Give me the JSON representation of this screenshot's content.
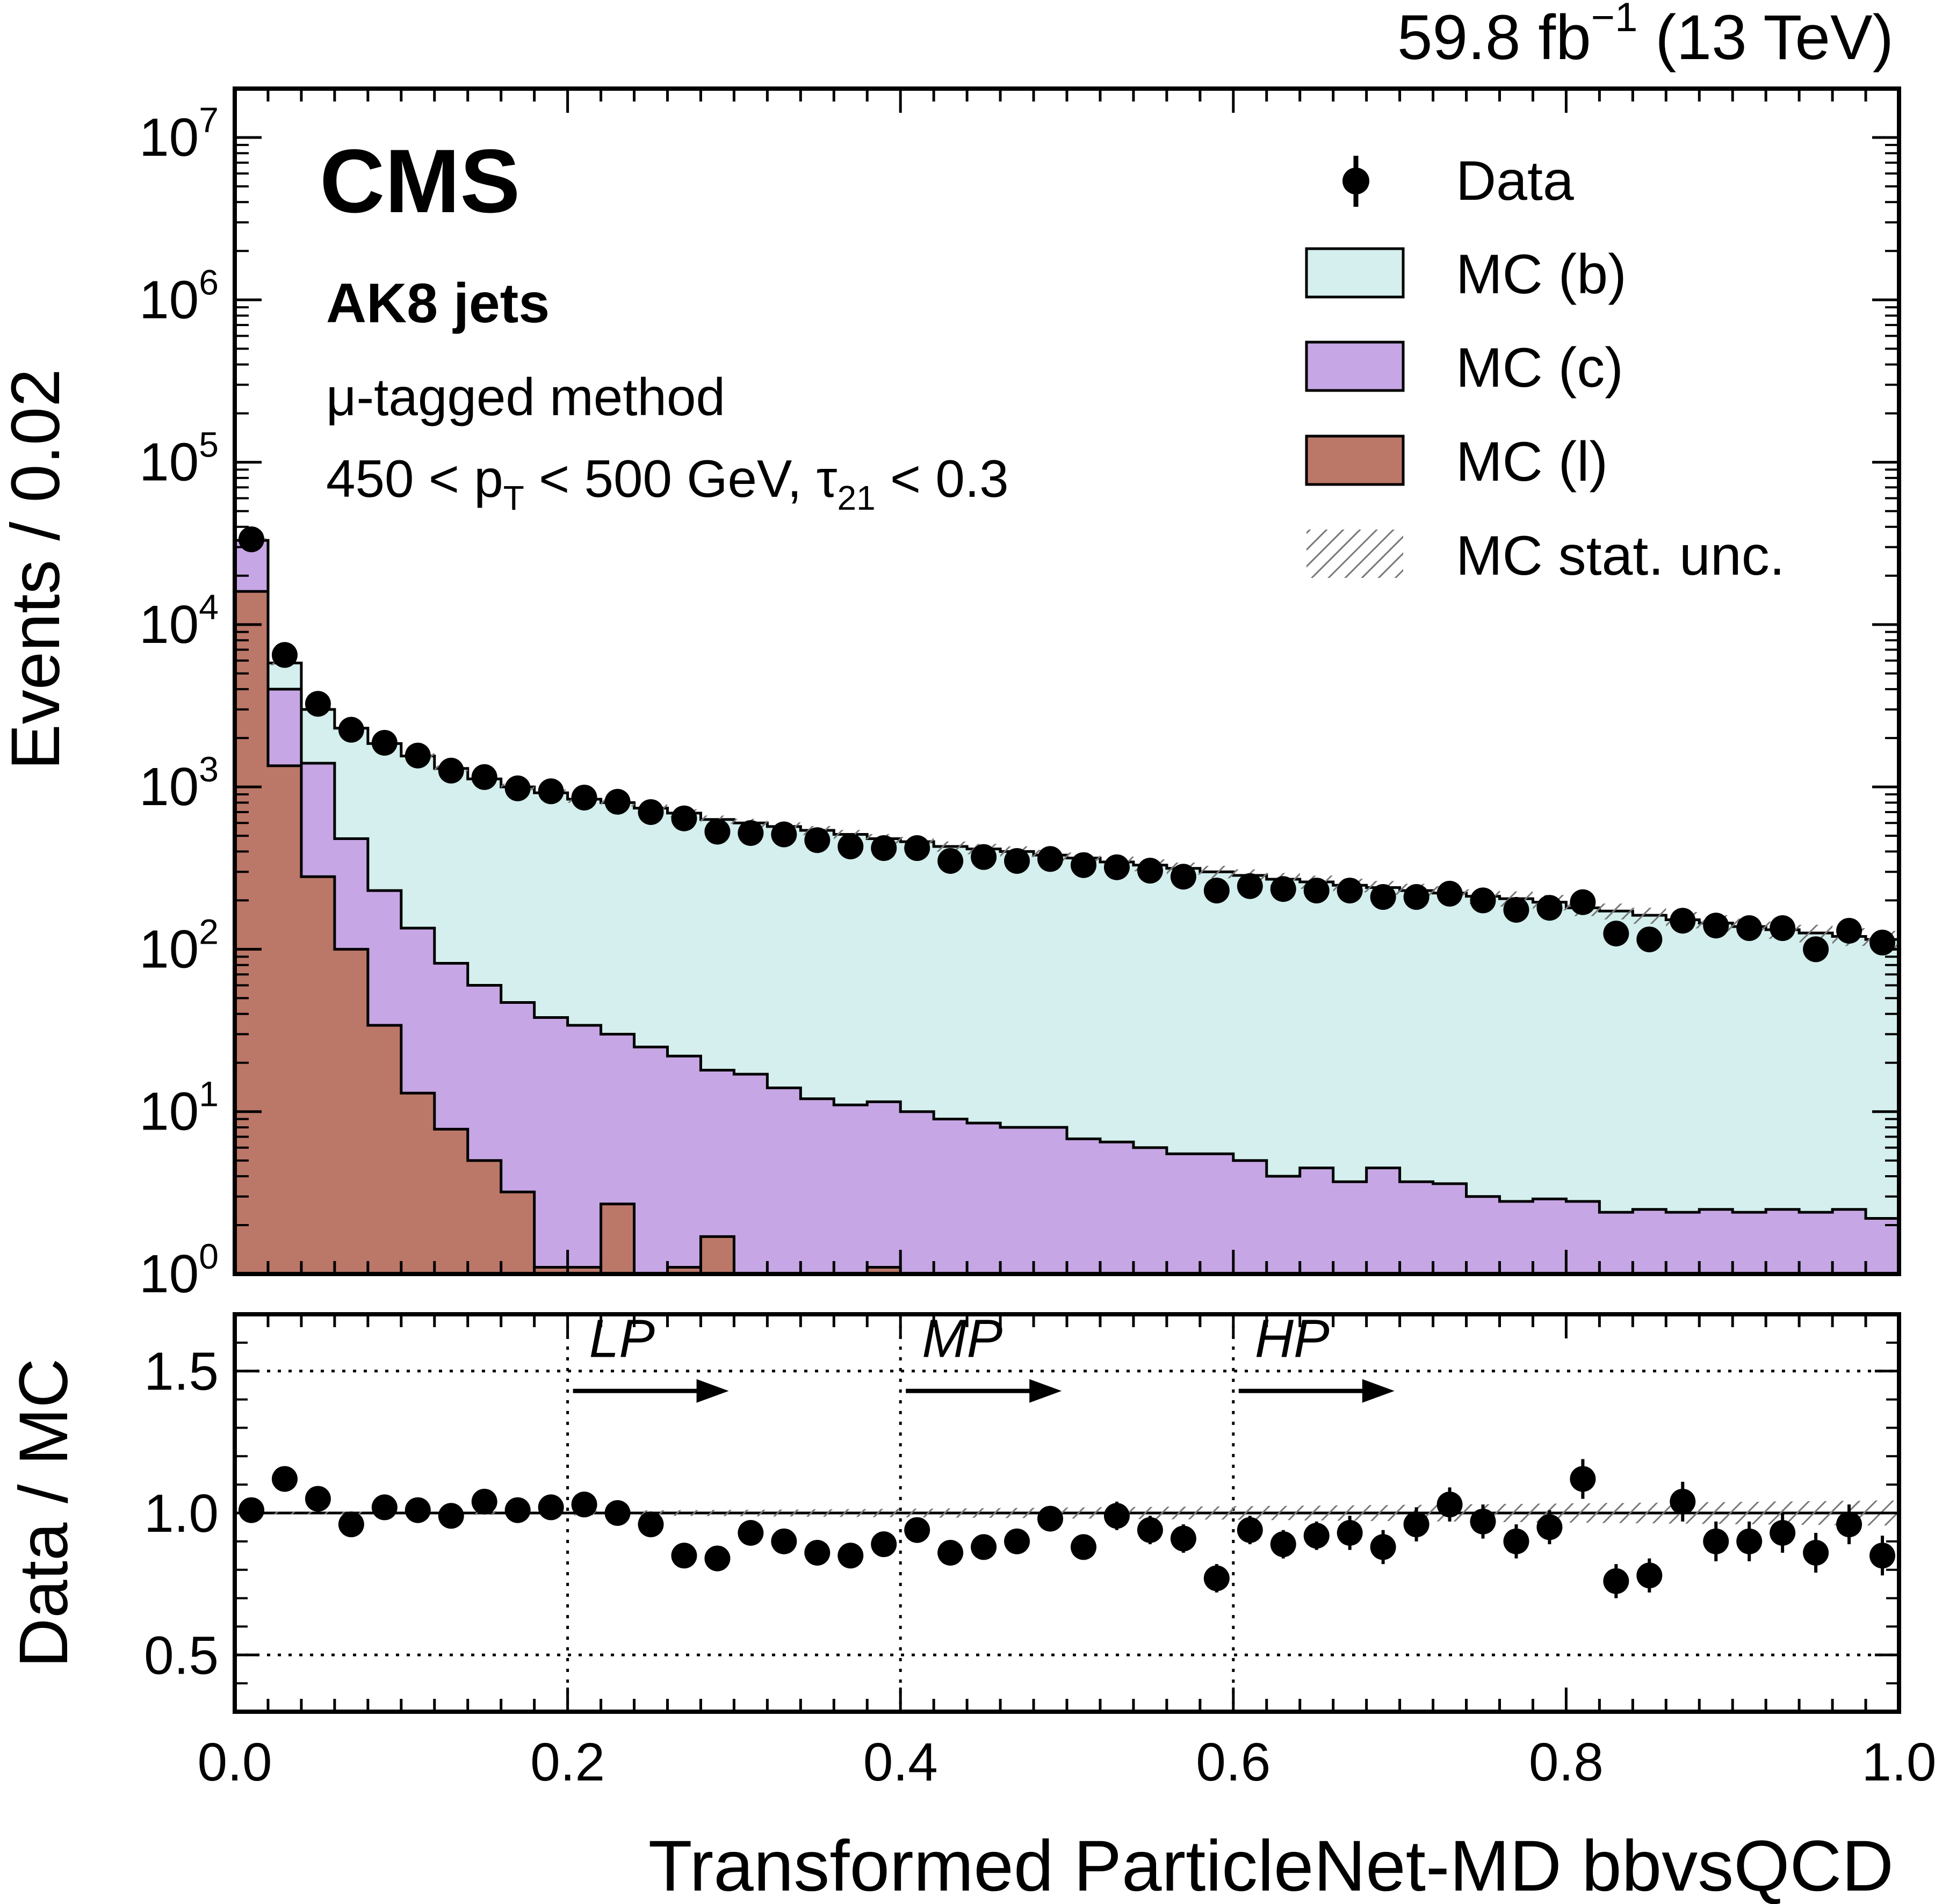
{
  "header": {
    "lumi_label": "59.8 fb",
    "lumi_exponent": "−1",
    "energy_label": "(13 TeV)"
  },
  "annotations": {
    "experiment": "CMS",
    "jet_collection": "AK8 jets",
    "method": "μ-tagged method",
    "cut_pt_prefix": "450 < p",
    "cut_pt_sub": "T",
    "cut_pt_suffix": " < 500 GeV, τ",
    "cut_tau_sub": "21",
    "cut_tau_suffix": " < 0.3"
  },
  "legend": {
    "data": "Data",
    "mc_b": "MC (b)",
    "mc_c": "MC (c)",
    "mc_l": "MC (l)",
    "mc_stat": "MC stat. unc."
  },
  "colors": {
    "mc_b": "#d4efed",
    "mc_c": "#c6a6e4",
    "mc_l": "#bb7768",
    "data": "#000000",
    "hatch": "#777777"
  },
  "chart_data": [
    {
      "type": "area",
      "panel": "main",
      "y_scale": "log",
      "ylabel": "Events / 0.02",
      "xlim": [
        0.0,
        1.0
      ],
      "ylim": [
        1,
        20000000
      ],
      "y_ticks": [
        {
          "value": 1,
          "exp": "0"
        },
        {
          "value": 10,
          "exp": "1"
        },
        {
          "value": 100,
          "exp": "2"
        },
        {
          "value": 1000,
          "exp": "3"
        },
        {
          "value": 10000,
          "exp": "4"
        },
        {
          "value": 100000,
          "exp": "5"
        },
        {
          "value": 1000000,
          "exp": "6"
        },
        {
          "value": 10000000,
          "exp": "7"
        }
      ],
      "y_tick_base": "10",
      "bin_edges": [
        0.0,
        0.02,
        0.04,
        0.06,
        0.08,
        0.1,
        0.12,
        0.14,
        0.16,
        0.18,
        0.2,
        0.22,
        0.24,
        0.26,
        0.28,
        0.3,
        0.32,
        0.34,
        0.36,
        0.38,
        0.4,
        0.42,
        0.44,
        0.46,
        0.48,
        0.5,
        0.52,
        0.54,
        0.56,
        0.58,
        0.6,
        0.62,
        0.64,
        0.66,
        0.68,
        0.7,
        0.72,
        0.74,
        0.76,
        0.78,
        0.8,
        0.82,
        0.84,
        0.86,
        0.88,
        0.9,
        0.92,
        0.94,
        0.96,
        0.98,
        1.0
      ],
      "series": [
        {
          "name": "MC (b)",
          "stacked_total": [
            33000,
            5800,
            3000,
            2300,
            1850,
            1550,
            1300,
            1120,
            1000,
            920,
            840,
            800,
            740,
            690,
            630,
            600,
            570,
            540,
            510,
            480,
            460,
            430,
            415,
            400,
            380,
            365,
            345,
            330,
            315,
            300,
            285,
            270,
            260,
            248,
            240,
            230,
            222,
            212,
            205,
            195,
            180,
            172,
            162,
            152,
            145,
            138,
            132,
            126,
            120,
            115
          ]
        },
        {
          "name": "MC (c)",
          "stacked_total": [
            33000,
            4000,
            1400,
            480,
            230,
            135,
            82,
            60,
            47,
            38,
            34,
            30,
            25,
            22,
            18,
            17,
            14,
            12,
            11,
            11.5,
            10,
            9,
            8.5,
            8,
            8,
            6.8,
            6.5,
            6,
            5.5,
            5.5,
            5,
            4,
            4.5,
            3.7,
            4.5,
            3.7,
            3.6,
            3,
            2.8,
            2.9,
            2.8,
            2.4,
            2.5,
            2.4,
            2.5,
            2.4,
            2.5,
            2.4,
            2.5,
            2.2
          ]
        },
        {
          "name": "MC (l)",
          "stacked_total": [
            16000,
            1350,
            280,
            100,
            34,
            13,
            7.8,
            5,
            3.2,
            1.1,
            1.1,
            2.7,
            1.0,
            1.1,
            1.7,
            1.0,
            1.0,
            1.0,
            1.0,
            1.1,
            1.0,
            1.0,
            1.0,
            1.0,
            1.0,
            1.0,
            1.0,
            1.0,
            1.0,
            1.0,
            1.0,
            1.0,
            1.0,
            1.0,
            1.0,
            1.0,
            1.0,
            1.0,
            1.0,
            1.0,
            1.0,
            1.0,
            1.0,
            1.0,
            1.0,
            1.0,
            1.0,
            1.0,
            1.0,
            1.0
          ]
        },
        {
          "name": "Data",
          "type": "scatter",
          "x": [
            0.01,
            0.03,
            0.05,
            0.07,
            0.09,
            0.11,
            0.13,
            0.15,
            0.17,
            0.19,
            0.21,
            0.23,
            0.25,
            0.27,
            0.29,
            0.31,
            0.33,
            0.35,
            0.37,
            0.39,
            0.41,
            0.43,
            0.45,
            0.47,
            0.49,
            0.51,
            0.53,
            0.55,
            0.57,
            0.59,
            0.61,
            0.63,
            0.65,
            0.67,
            0.69,
            0.71,
            0.73,
            0.75,
            0.77,
            0.79,
            0.81,
            0.83,
            0.85,
            0.87,
            0.89,
            0.91,
            0.93,
            0.95,
            0.97,
            0.99
          ],
          "y": [
            33500,
            6500,
            3250,
            2250,
            1870,
            1560,
            1260,
            1150,
            980,
            940,
            860,
            810,
            700,
            640,
            530,
            520,
            510,
            470,
            430,
            420,
            420,
            350,
            370,
            350,
            360,
            330,
            320,
            305,
            280,
            230,
            245,
            235,
            230,
            230,
            210,
            210,
            220,
            200,
            175,
            180,
            195,
            125,
            115,
            150,
            140,
            135,
            135,
            100,
            130,
            110
          ]
        }
      ]
    },
    {
      "type": "scatter",
      "panel": "ratio",
      "xlabel": "Transformed ParticleNet-MD bbvsQCD",
      "ylabel": "Data / MC",
      "xlim": [
        0.0,
        1.0
      ],
      "ylim": [
        0.3,
        1.7
      ],
      "x_ticks": [
        "0.0",
        "0.2",
        "0.4",
        "0.6",
        "0.8",
        "1.0"
      ],
      "y_ticks": [
        "0.5",
        "1.0",
        "1.5"
      ],
      "grid": "dotted",
      "regions": [
        {
          "label": "LP",
          "x_start": 0.2
        },
        {
          "label": "MP",
          "x_start": 0.4
        },
        {
          "label": "HP",
          "x_start": 0.6
        }
      ],
      "series": [
        {
          "name": "Data / MC",
          "x": [
            0.01,
            0.03,
            0.05,
            0.07,
            0.09,
            0.11,
            0.13,
            0.15,
            0.17,
            0.19,
            0.21,
            0.23,
            0.25,
            0.27,
            0.29,
            0.31,
            0.33,
            0.35,
            0.37,
            0.39,
            0.41,
            0.43,
            0.45,
            0.47,
            0.49,
            0.51,
            0.53,
            0.55,
            0.57,
            0.59,
            0.61,
            0.63,
            0.65,
            0.67,
            0.69,
            0.71,
            0.73,
            0.75,
            0.77,
            0.79,
            0.81,
            0.83,
            0.85,
            0.87,
            0.89,
            0.91,
            0.93,
            0.95,
            0.97,
            0.99
          ],
          "y": [
            1.01,
            1.12,
            1.05,
            0.96,
            1.02,
            1.01,
            0.99,
            1.04,
            1.01,
            1.02,
            1.03,
            1.0,
            0.96,
            0.85,
            0.84,
            0.93,
            0.9,
            0.86,
            0.85,
            0.89,
            0.94,
            0.86,
            0.88,
            0.9,
            0.98,
            0.88,
            0.99,
            0.94,
            0.91,
            0.77,
            0.94,
            0.89,
            0.92,
            0.93,
            0.88,
            0.96,
            1.03,
            0.97,
            0.9,
            0.95,
            1.12,
            0.76,
            0.78,
            1.04,
            0.9,
            0.9,
            0.93,
            0.86,
            0.96,
            0.85
          ],
          "err": [
            0.01,
            0.02,
            0.02,
            0.02,
            0.02,
            0.02,
            0.02,
            0.03,
            0.03,
            0.03,
            0.03,
            0.03,
            0.03,
            0.03,
            0.03,
            0.04,
            0.04,
            0.04,
            0.04,
            0.04,
            0.04,
            0.04,
            0.04,
            0.04,
            0.04,
            0.04,
            0.05,
            0.05,
            0.05,
            0.05,
            0.05,
            0.05,
            0.05,
            0.06,
            0.06,
            0.06,
            0.06,
            0.06,
            0.06,
            0.06,
            0.07,
            0.06,
            0.06,
            0.07,
            0.07,
            0.07,
            0.07,
            0.07,
            0.07,
            0.07
          ]
        }
      ]
    }
  ]
}
